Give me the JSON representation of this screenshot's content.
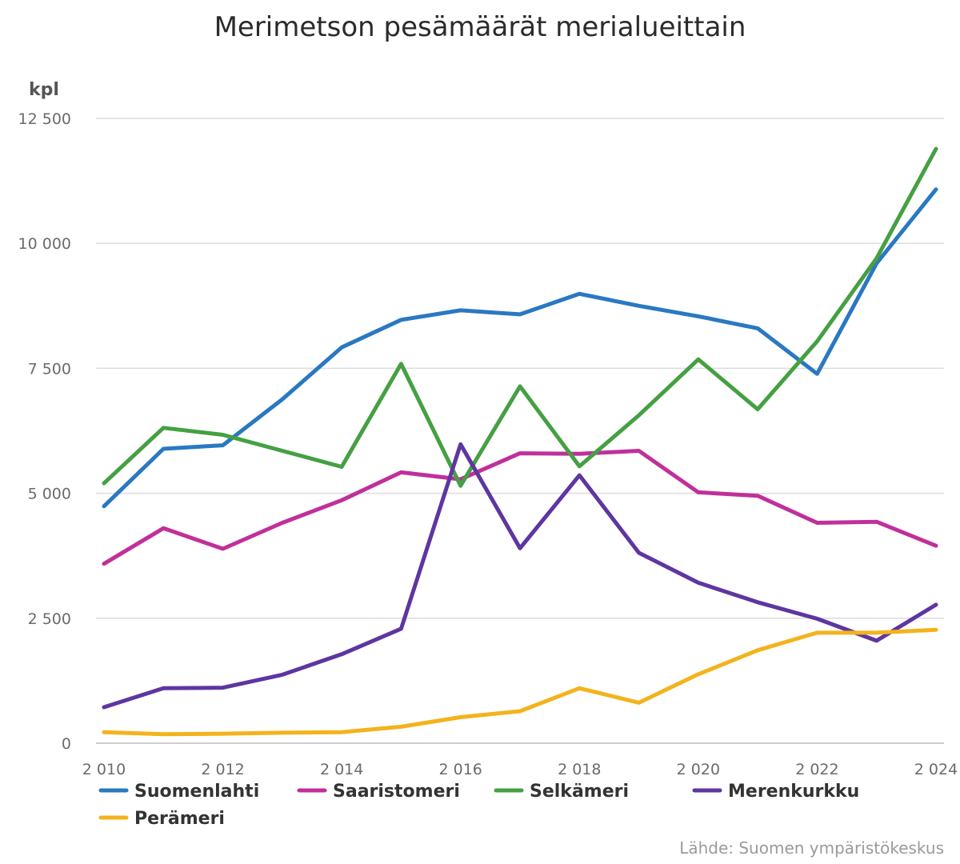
{
  "chart_data": {
    "type": "line",
    "title": "Merimetson pesämäärät merialueittain",
    "ylabel": "kpl",
    "xlabel": "",
    "ylim": [
      0,
      12500
    ],
    "yticks": [
      0,
      2500,
      5000,
      7500,
      10000,
      12500
    ],
    "ytick_labels": [
      "0",
      "2 500",
      "5 000",
      "7 500",
      "10 000",
      "12 500"
    ],
    "xlim": [
      2010,
      2024
    ],
    "xticks": [
      2010,
      2012,
      2014,
      2016,
      2018,
      2020,
      2022,
      2024
    ],
    "xtick_labels": [
      "2 010",
      "2 012",
      "2 014",
      "2 016",
      "2 018",
      "2 020",
      "2 022",
      "2 024"
    ],
    "grid": true,
    "legend_position": "bottom",
    "x": [
      2010,
      2011,
      2012,
      2013,
      2014,
      2015,
      2016,
      2017,
      2018,
      2019,
      2020,
      2021,
      2022,
      2023,
      2024
    ],
    "series": [
      {
        "name": "Suomenlahti",
        "color": "#2a78c2",
        "values": [
          4740,
          5890,
          5960,
          6880,
          7920,
          8470,
          8660,
          8580,
          8990,
          8750,
          8540,
          8300,
          7390,
          9600,
          11080
        ]
      },
      {
        "name": "Saaristomeri",
        "color": "#c0309a",
        "values": [
          3590,
          4300,
          3890,
          4410,
          4860,
          5420,
          5280,
          5800,
          5790,
          5850,
          5020,
          4950,
          4410,
          4430,
          3950
        ]
      },
      {
        "name": "Selkämeri",
        "color": "#45a043",
        "values": [
          5200,
          6310,
          6170,
          5850,
          5530,
          7590,
          5150,
          7140,
          5540,
          6560,
          7680,
          6680,
          8040,
          9700,
          11890
        ]
      },
      {
        "name": "Merenkurkku",
        "color": "#5e36a0",
        "values": [
          720,
          1100,
          1110,
          1370,
          1780,
          2290,
          5980,
          3900,
          5360,
          3810,
          3210,
          2820,
          2490,
          2050,
          2770
        ]
      },
      {
        "name": "Perämeri",
        "color": "#f3b31c",
        "values": [
          220,
          180,
          190,
          210,
          220,
          330,
          520,
          640,
          1100,
          810,
          1380,
          1860,
          2210,
          2210,
          2270
        ]
      }
    ]
  },
  "source": "Lähde: Suomen ympäristökeskus"
}
